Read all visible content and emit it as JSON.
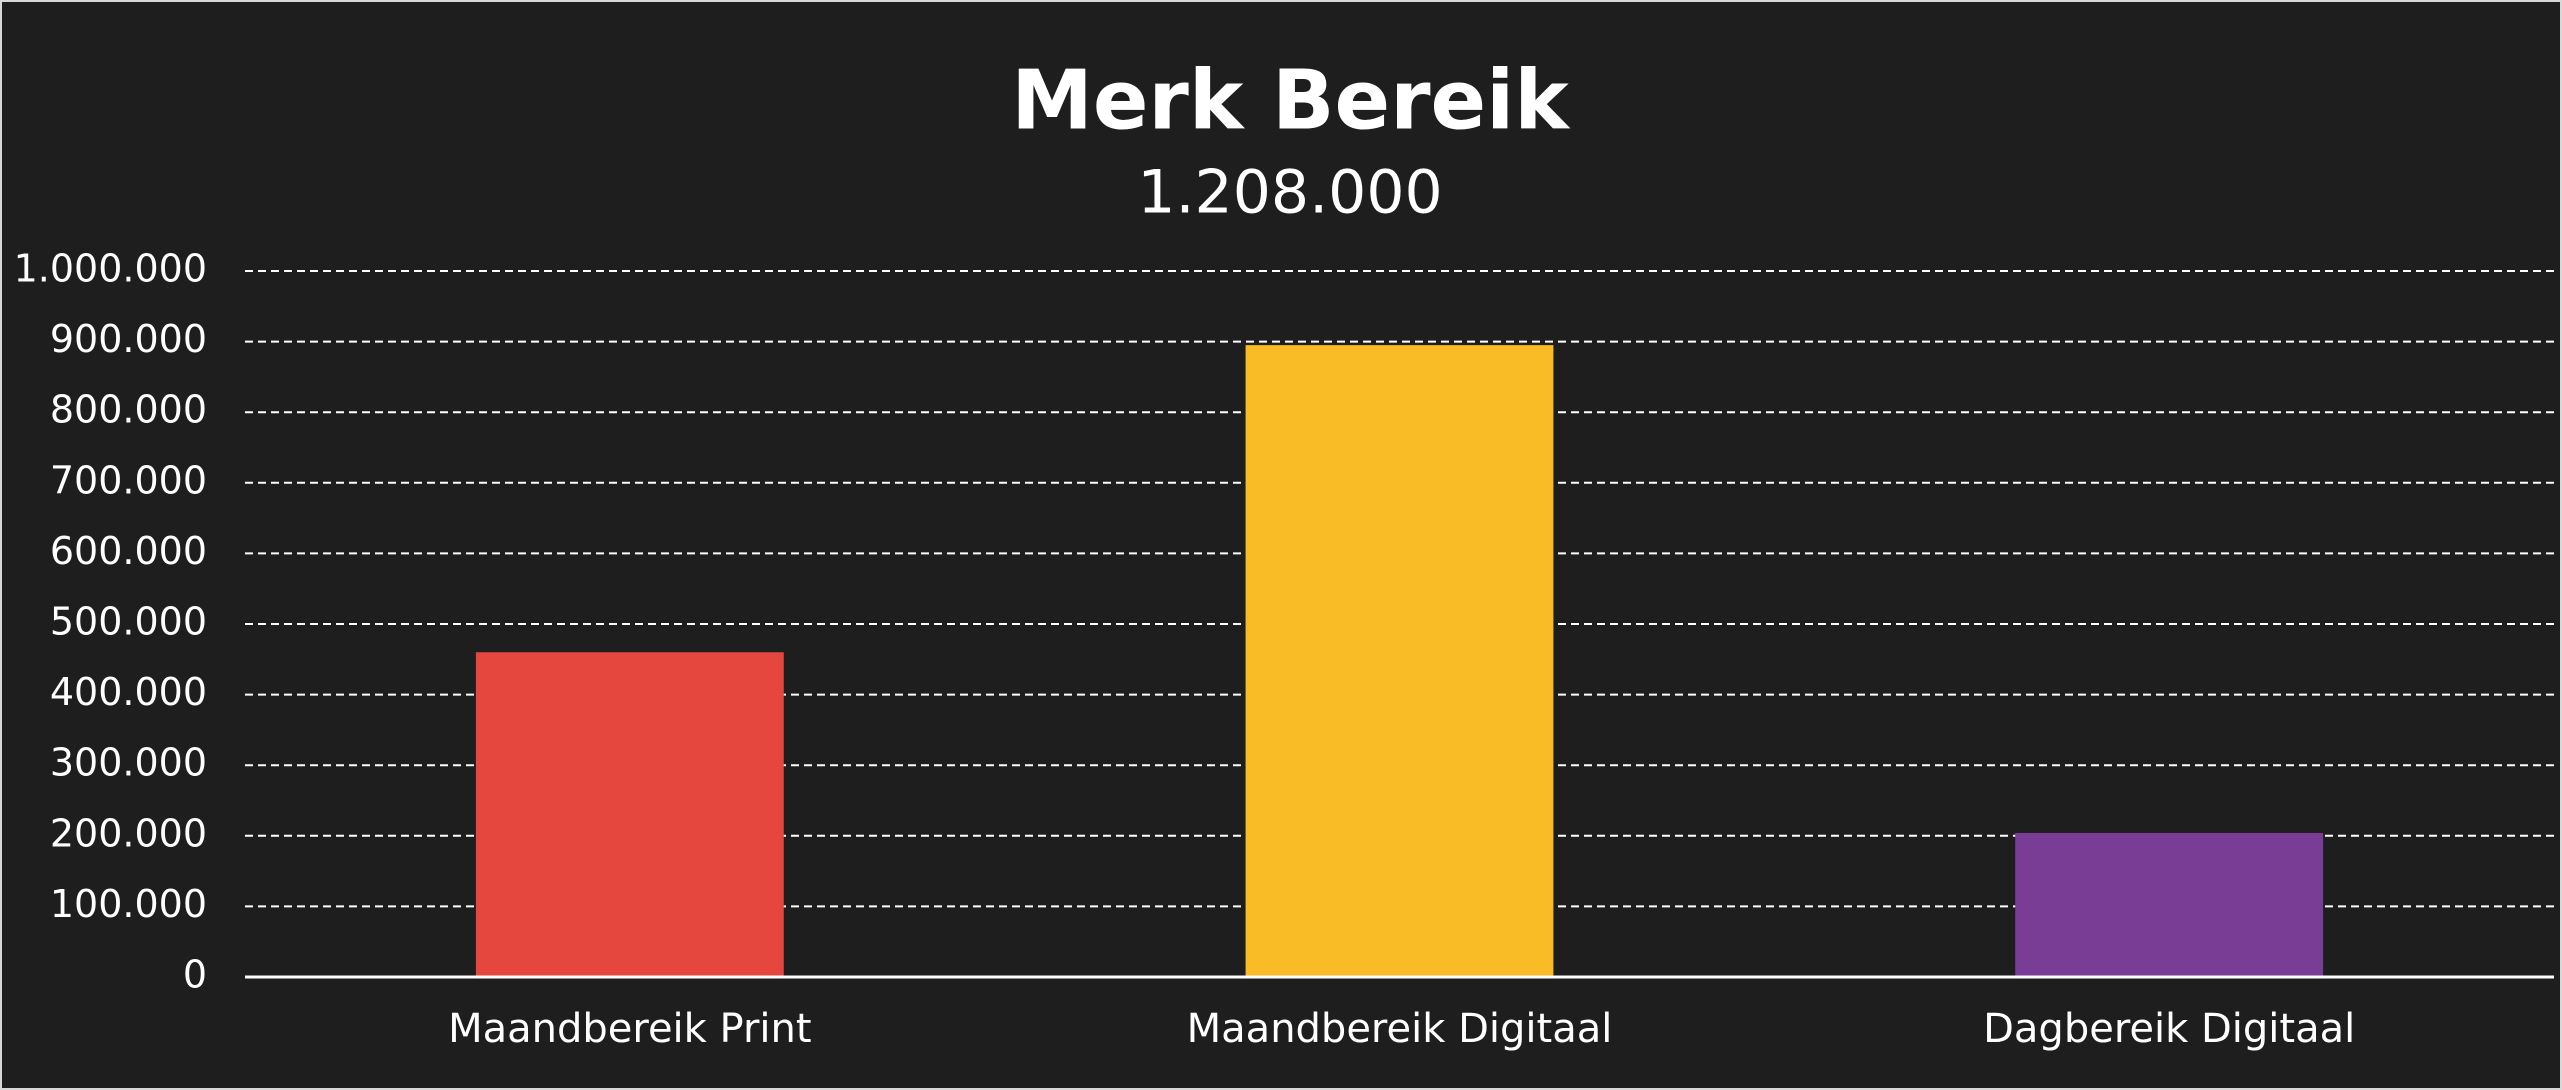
{
  "chart_data": {
    "type": "bar",
    "title": "Merk Bereik",
    "subtitle": "1.208.000",
    "categories": [
      "Maandbereik Print",
      "Maandbereik Digitaal",
      "Dagbereik Digitaal"
    ],
    "values": [
      460000,
      895000,
      204000
    ],
    "colors": [
      "#e5473f",
      "#f9bb26",
      "#7a3d96"
    ],
    "ylim": [
      0,
      1000000
    ],
    "yticks": [
      0,
      {
        "value": 100000,
        "label": "100.000"
      },
      {
        "value": 200000,
        "label": "200.000"
      },
      {
        "value": 300000,
        "label": "300.000"
      },
      {
        "value": 400000,
        "label": "400.000"
      },
      {
        "value": 500000,
        "label": "500.000"
      },
      {
        "value": 600000,
        "label": "600.000"
      },
      {
        "value": 700000,
        "label": "700.000"
      },
      {
        "value": 800000,
        "label": "800.000"
      },
      {
        "value": 900000,
        "label": "900.000"
      },
      {
        "value": 1000000,
        "label": "1.000.000"
      }
    ],
    "grid": true
  }
}
